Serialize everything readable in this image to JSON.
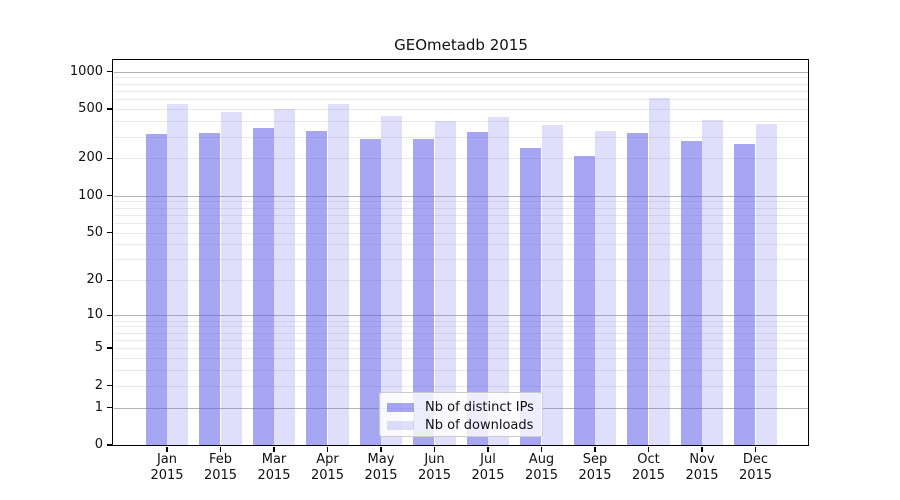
{
  "title": "GEOmetadb 2015",
  "chart_data": {
    "type": "bar",
    "title": "GEOmetadb 2015",
    "xlabel": "",
    "ylabel": "",
    "yscale": "log1p",
    "ylim": [
      0,
      1230
    ],
    "y_ticks": [
      0,
      1,
      2,
      5,
      10,
      20,
      50,
      100,
      200,
      500,
      1000
    ],
    "categories": [
      "Jan\n2015",
      "Feb\n2015",
      "Mar\n2015",
      "Apr\n2015",
      "May\n2015",
      "Jun\n2015",
      "Jul\n2015",
      "Aug\n2015",
      "Sep\n2015",
      "Oct\n2015",
      "Nov\n2015",
      "Dec\n2015"
    ],
    "series": [
      {
        "name": "Nb of distinct IPs",
        "base_color": "#6060ea",
        "alpha": 0.56,
        "values": [
          315,
          318,
          355,
          330,
          285,
          286,
          325,
          245,
          210,
          318,
          275,
          260
        ]
      },
      {
        "name": "Nb of downloads",
        "base_color": "#6060ea",
        "alpha": 0.2,
        "values": [
          550,
          472,
          500,
          545,
          440,
          403,
          435,
          370,
          335,
          610,
          405,
          378
        ]
      }
    ],
    "grid": {
      "major_color": "#b3b3b3",
      "minor_color": "#eaeaea",
      "major_values": [
        1,
        10,
        100,
        1000
      ],
      "minor_values": [
        2,
        3,
        4,
        5,
        6,
        7,
        8,
        9,
        20,
        30,
        40,
        50,
        60,
        70,
        80,
        90,
        200,
        300,
        400,
        500,
        600,
        700,
        800,
        900
      ]
    },
    "legend_position": "lower-center"
  }
}
